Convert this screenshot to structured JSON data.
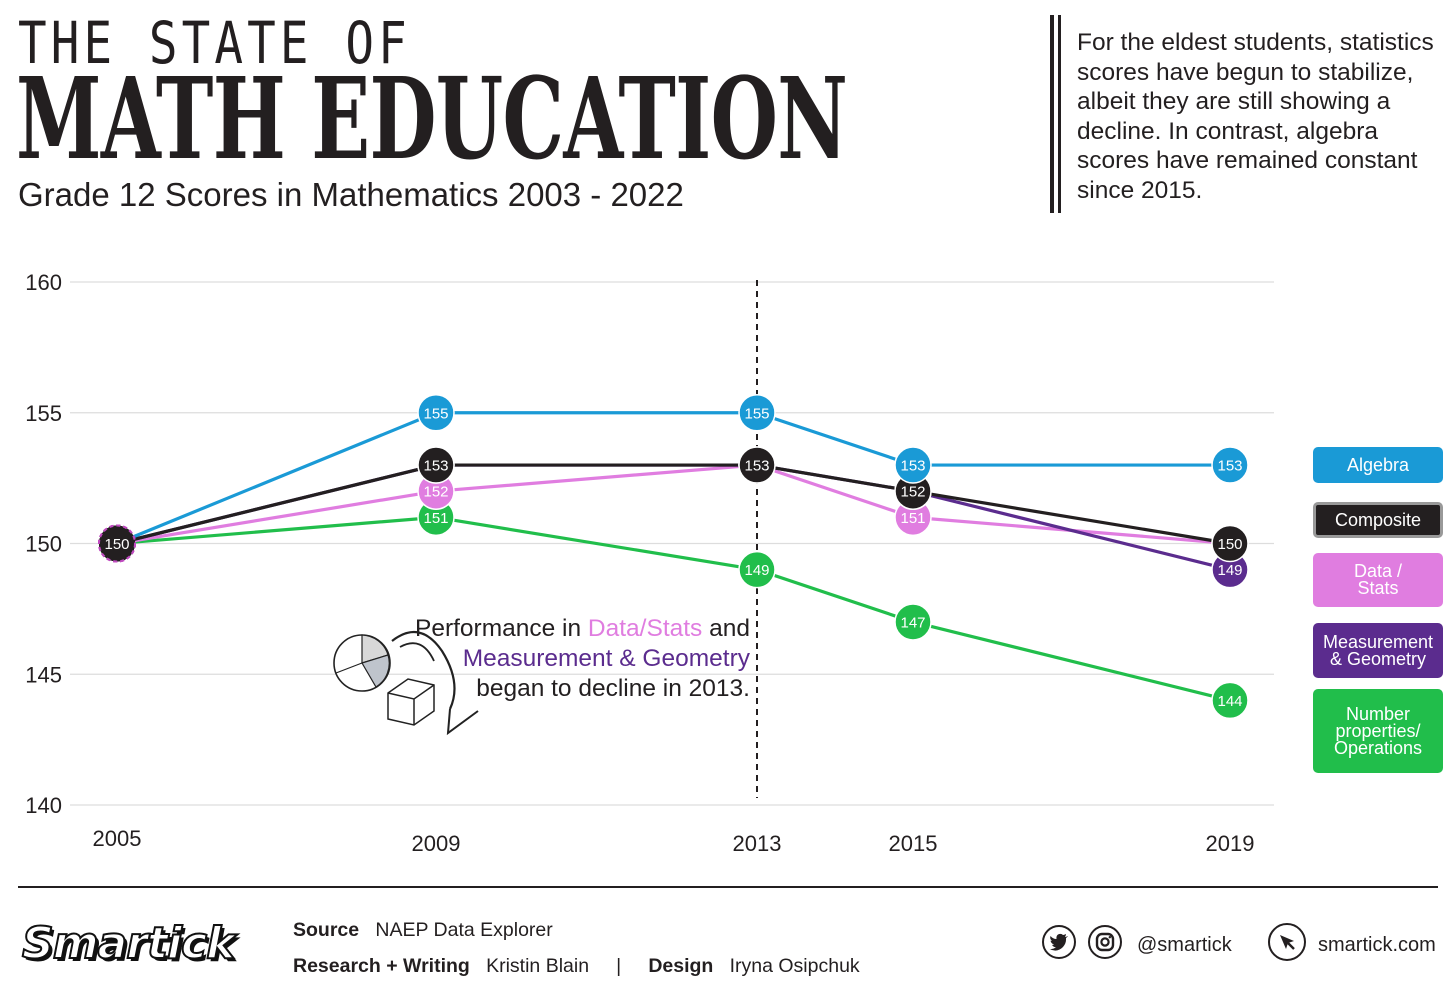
{
  "header": {
    "title_top": "THE STATE OF",
    "title_main": "MATH EDUCATION",
    "subtitle": "Grade 12 Scores in Mathematics 2003 - 2022"
  },
  "note": "For the eldest students, statistics scores have begun to stabilize, albeit they are still showing a decline. In contrast, algebra scores have remained constant since 2015.",
  "annotation": {
    "p1": "Performance in ",
    "stats": "Data/Stats",
    "p2": " and ",
    "meas": "Measurement & Geometry",
    "p3": " began to decline in 2013."
  },
  "legend": [
    {
      "label": "Algebra",
      "color": "#1a9ad6"
    },
    {
      "label": "Composite",
      "color": "#231f20"
    },
    {
      "label": "Data / Stats",
      "color": "#e07de0"
    },
    {
      "label": "Measurement & Geometry",
      "color": "#5b2c8e"
    },
    {
      "label": "Number properties/ Operations",
      "color": "#21be4b"
    }
  ],
  "chart_data": {
    "type": "line",
    "title": "Grade 12 Scores in Mathematics 2003 - 2022",
    "x": [
      2005,
      2009,
      2013,
      2015,
      2019
    ],
    "ylim": [
      140,
      160
    ],
    "yticks": [
      140,
      145,
      150,
      155,
      160
    ],
    "grid": true,
    "legend_position": "right",
    "marker_line_x": 2013,
    "series": [
      {
        "name": "Number properties/ Operations",
        "color": "#21be4b",
        "values": [
          150,
          151,
          149,
          147,
          144
        ]
      },
      {
        "name": "Data / Stats",
        "color": "#e07de0",
        "values": [
          150,
          152,
          153,
          151,
          150
        ]
      },
      {
        "name": "Measurement & Geometry",
        "color": "#5b2c8e",
        "values": [
          150,
          153,
          153,
          152,
          149
        ]
      },
      {
        "name": "Composite",
        "color": "#231f20",
        "values": [
          150,
          153,
          153,
          152,
          150
        ]
      },
      {
        "name": "Algebra",
        "color": "#1a9ad6",
        "values": [
          150,
          155,
          155,
          153,
          153
        ]
      }
    ]
  },
  "footer": {
    "logo": "Smartick",
    "source_label": "Source",
    "source_value": "NAEP Data Explorer",
    "research_label": "Research + Writing",
    "research_value": "Kristin Blain",
    "separator": "|",
    "design_label": "Design",
    "design_value": "Iryna Osipchuk",
    "handle": "@smartick",
    "website": "smartick.com",
    "icons": [
      "twitter-icon",
      "instagram-icon",
      "cursor-icon"
    ]
  }
}
